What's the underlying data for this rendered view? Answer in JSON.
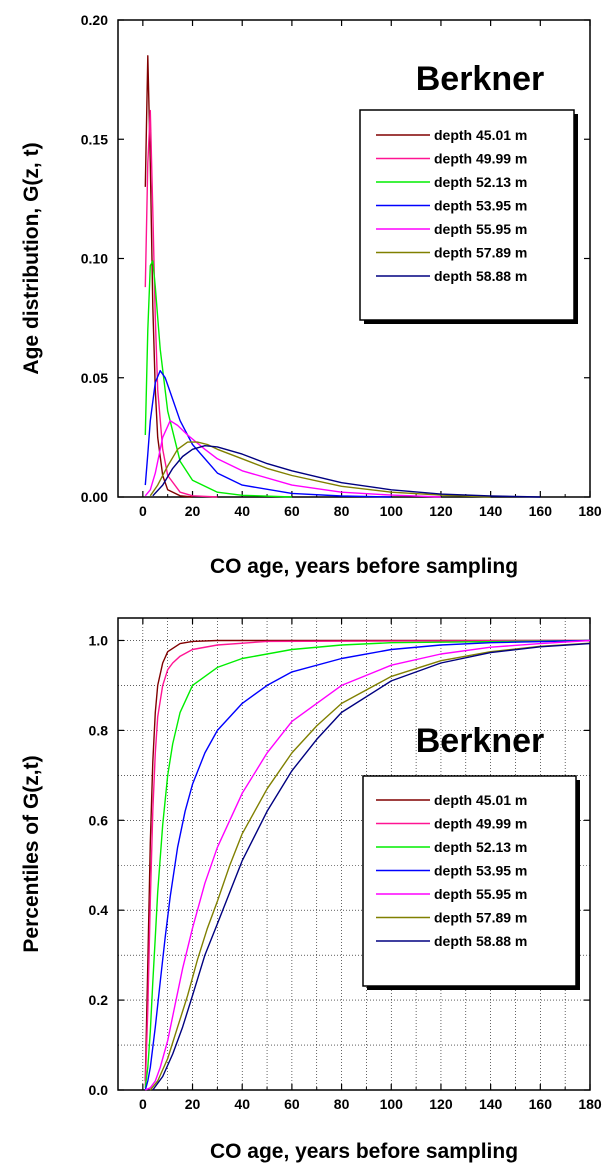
{
  "chart_data": [
    {
      "type": "line",
      "title": "Berkner",
      "xlabel": "CO age, years before sampling",
      "ylabel": "Age distribution, G(z, t)",
      "xlim": [
        -10,
        180
      ],
      "ylim": [
        0,
        0.2
      ],
      "xticks": [
        0,
        20,
        40,
        60,
        80,
        100,
        120,
        140,
        160,
        180
      ],
      "yticks": [
        "0.00",
        "0.05",
        "0.10",
        "0.15",
        "0.20"
      ],
      "grid": false,
      "legend": "top-right",
      "series": [
        {
          "name": "depth 45.01 m",
          "color": "#800000",
          "x": [
            1,
            2,
            3,
            4,
            5,
            6,
            8,
            10,
            15,
            20
          ],
          "y": [
            0.13,
            0.185,
            0.14,
            0.08,
            0.045,
            0.025,
            0.009,
            0.003,
            0.0005,
            0
          ]
        },
        {
          "name": "depth 49.99 m",
          "color": "#ff1493",
          "x": [
            1,
            2,
            3,
            4,
            5,
            6,
            8,
            10,
            15,
            20,
            30
          ],
          "y": [
            0.088,
            0.14,
            0.162,
            0.12,
            0.075,
            0.045,
            0.02,
            0.009,
            0.002,
            0.0005,
            0
          ]
        },
        {
          "name": "depth 52.13 m",
          "color": "#00ee00",
          "x": [
            1,
            2,
            3,
            4,
            5,
            7,
            10,
            15,
            20,
            30,
            40,
            60
          ],
          "y": [
            0.026,
            0.07,
            0.097,
            0.099,
            0.088,
            0.062,
            0.036,
            0.015,
            0.007,
            0.002,
            0.0007,
            0
          ]
        },
        {
          "name": "depth 53.95 m",
          "color": "#0000ff",
          "x": [
            1,
            2,
            3,
            5,
            7,
            9,
            11,
            15,
            20,
            30,
            40,
            60,
            80,
            100
          ],
          "y": [
            0.005,
            0.018,
            0.032,
            0.048,
            0.053,
            0.05,
            0.044,
            0.032,
            0.022,
            0.01,
            0.005,
            0.0015,
            0.0004,
            0
          ]
        },
        {
          "name": "depth 55.95 m",
          "color": "#ff00ff",
          "x": [
            1,
            3,
            5,
            8,
            11,
            14,
            18,
            25,
            30,
            40,
            60,
            80,
            100,
            120
          ],
          "y": [
            0.0005,
            0.003,
            0.01,
            0.025,
            0.032,
            0.03,
            0.026,
            0.02,
            0.016,
            0.011,
            0.005,
            0.002,
            0.0008,
            0
          ]
        },
        {
          "name": "depth 57.89 m",
          "color": "#808000",
          "x": [
            3,
            6,
            10,
            14,
            18,
            22,
            26,
            30,
            40,
            50,
            60,
            80,
            100,
            120,
            140
          ],
          "y": [
            0.0005,
            0.005,
            0.013,
            0.02,
            0.023,
            0.023,
            0.022,
            0.02,
            0.016,
            0.012,
            0.009,
            0.0045,
            0.002,
            0.0008,
            0
          ]
        },
        {
          "name": "depth 58.88 m",
          "color": "#000080",
          "x": [
            4,
            8,
            12,
            16,
            20,
            25,
            30,
            40,
            50,
            60,
            80,
            100,
            120,
            140,
            160
          ],
          "y": [
            0.0005,
            0.005,
            0.012,
            0.017,
            0.02,
            0.0215,
            0.021,
            0.018,
            0.014,
            0.011,
            0.006,
            0.003,
            0.0012,
            0.0004,
            0
          ]
        }
      ]
    },
    {
      "type": "line",
      "title": "Berkner",
      "xlabel": "CO age, years before sampling",
      "ylabel": "Percentiles of G(z,t)",
      "xlim": [
        -10,
        180
      ],
      "ylim": [
        0,
        1.05
      ],
      "xticks": [
        0,
        20,
        40,
        60,
        80,
        100,
        120,
        140,
        160,
        180
      ],
      "yticks": [
        "0.0",
        "0.2",
        "0.4",
        "0.6",
        "0.8",
        "1.0"
      ],
      "grid": true,
      "legend": "right",
      "series": [
        {
          "name": "depth 45.01 m",
          "color": "#800000",
          "x": [
            1,
            2,
            3,
            4,
            5,
            6,
            8,
            10,
            15,
            20,
            30,
            180
          ],
          "y": [
            0.02,
            0.28,
            0.55,
            0.73,
            0.84,
            0.9,
            0.95,
            0.975,
            0.993,
            0.998,
            1.0,
            1.0
          ]
        },
        {
          "name": "depth 49.99 m",
          "color": "#ff1493",
          "x": [
            1,
            2,
            3,
            4,
            5,
            6,
            8,
            10,
            12,
            15,
            20,
            30,
            50,
            180
          ],
          "y": [
            0.01,
            0.18,
            0.42,
            0.62,
            0.75,
            0.83,
            0.9,
            0.935,
            0.95,
            0.965,
            0.98,
            0.99,
            0.998,
            1.0
          ]
        },
        {
          "name": "depth 52.13 m",
          "color": "#00ee00",
          "x": [
            1,
            2,
            3,
            4,
            5,
            6,
            8,
            10,
            12,
            15,
            20,
            30,
            40,
            60,
            80,
            100,
            180
          ],
          "y": [
            0.005,
            0.05,
            0.13,
            0.24,
            0.34,
            0.44,
            0.59,
            0.7,
            0.77,
            0.84,
            0.9,
            0.94,
            0.96,
            0.98,
            0.99,
            0.995,
            1.0
          ]
        },
        {
          "name": "depth 53.95 m",
          "color": "#0000ff",
          "x": [
            1,
            2,
            3,
            5,
            7,
            9,
            11,
            14,
            17,
            20,
            25,
            30,
            40,
            50,
            60,
            80,
            100,
            120,
            140,
            180
          ],
          "y": [
            0.0,
            0.02,
            0.05,
            0.14,
            0.24,
            0.34,
            0.43,
            0.54,
            0.62,
            0.68,
            0.75,
            0.8,
            0.86,
            0.9,
            0.93,
            0.96,
            0.98,
            0.99,
            0.995,
            1.0
          ]
        },
        {
          "name": "depth 55.95 m",
          "color": "#ff00ff",
          "x": [
            1,
            3,
            5,
            7,
            10,
            13,
            16,
            20,
            25,
            30,
            40,
            50,
            60,
            70,
            80,
            100,
            120,
            140,
            160,
            180
          ],
          "y": [
            0.0,
            0.005,
            0.02,
            0.05,
            0.11,
            0.19,
            0.27,
            0.36,
            0.46,
            0.54,
            0.66,
            0.75,
            0.82,
            0.86,
            0.9,
            0.945,
            0.97,
            0.985,
            0.993,
            1.0
          ]
        },
        {
          "name": "depth 57.89 m",
          "color": "#808000",
          "x": [
            3,
            6,
            10,
            14,
            18,
            22,
            26,
            30,
            35,
            40,
            50,
            60,
            70,
            80,
            100,
            120,
            140,
            160,
            180
          ],
          "y": [
            0.0,
            0.02,
            0.07,
            0.14,
            0.21,
            0.29,
            0.36,
            0.42,
            0.5,
            0.57,
            0.67,
            0.75,
            0.81,
            0.86,
            0.92,
            0.955,
            0.975,
            0.987,
            0.994
          ]
        },
        {
          "name": "depth 58.88 m",
          "color": "#000080",
          "x": [
            4,
            8,
            12,
            16,
            20,
            25,
            30,
            35,
            40,
            50,
            60,
            70,
            80,
            100,
            120,
            140,
            160,
            180
          ],
          "y": [
            0.0,
            0.03,
            0.08,
            0.14,
            0.21,
            0.3,
            0.37,
            0.44,
            0.51,
            0.62,
            0.71,
            0.78,
            0.84,
            0.91,
            0.95,
            0.973,
            0.986,
            0.993
          ]
        }
      ]
    }
  ]
}
